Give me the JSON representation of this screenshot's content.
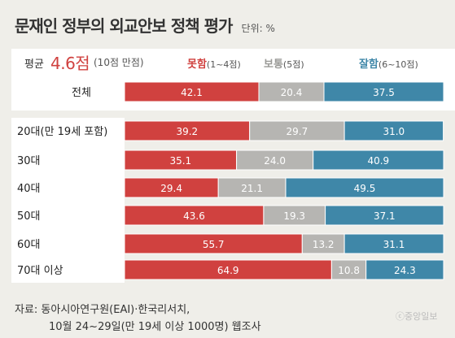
{
  "title": "문재인 정부의 외교안보 정책 평가",
  "unit": "단위: %",
  "average": {
    "label": "평균",
    "value": "4.6점",
    "suffix": "(10점 만점)"
  },
  "legend": [
    {
      "name": "못함",
      "range": "(1~4점)",
      "color": "#d0413f"
    },
    {
      "name": "보통",
      "range": "(5점)",
      "color": "#b6b5b2"
    },
    {
      "name": "잘함",
      "range": "(6~10점)",
      "color": "#3f87a8"
    }
  ],
  "chart_data": {
    "type": "bar",
    "orientation": "horizontal",
    "stacked": true,
    "title": "문재인 정부의 외교안보 정책 평가",
    "unit": "%",
    "categories": [
      "전체",
      "20대(만 19세 포함)",
      "30대",
      "40대",
      "50대",
      "60대",
      "70대 이상"
    ],
    "series": [
      {
        "name": "못함(1~4점)",
        "color": "#d0413f",
        "values": [
          42.1,
          39.2,
          35.1,
          29.4,
          43.6,
          55.7,
          64.9
        ]
      },
      {
        "name": "보통(5점)",
        "color": "#b6b5b2",
        "values": [
          20.4,
          29.7,
          24.0,
          21.1,
          19.3,
          13.2,
          10.8
        ]
      },
      {
        "name": "잘함(6~10점)",
        "color": "#3f87a8",
        "values": [
          37.5,
          31.0,
          40.9,
          49.5,
          37.1,
          31.1,
          24.3
        ]
      }
    ],
    "value_labels": [
      [
        "42.1",
        "20.4",
        "37.5"
      ],
      [
        "39.2",
        "29.7",
        "31.0"
      ],
      [
        "35.1",
        "24.0",
        "40.9"
      ],
      [
        "29.4",
        "21.1",
        "49.5"
      ],
      [
        "43.6",
        "19.3",
        "37.1"
      ],
      [
        "55.7",
        "13.2",
        "31.1"
      ],
      [
        "64.9",
        "10.8",
        "24.3"
      ]
    ]
  },
  "source": {
    "line1": "자료: 동아시아연구원(EAI)·한국리서치,",
    "line2": "10월 24~29일(만 19세 이상 1000명) 웹조사"
  },
  "logo": "ⓒ중앙일보"
}
